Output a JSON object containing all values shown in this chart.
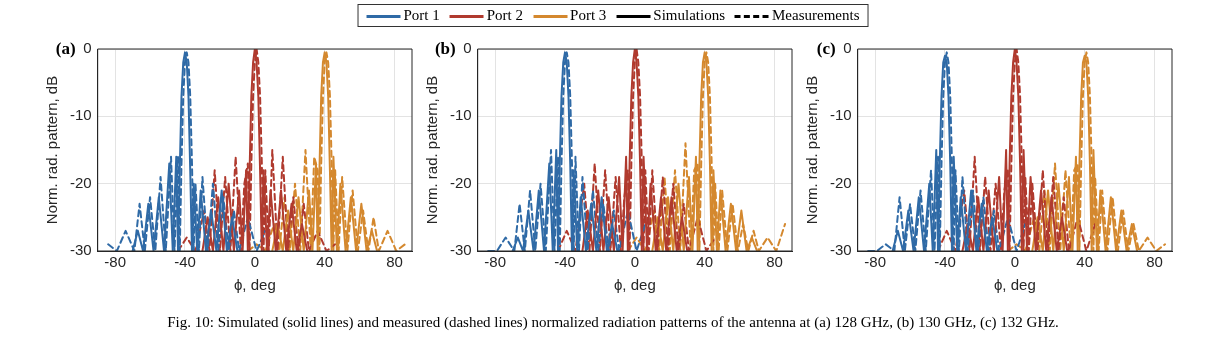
{
  "chart_data": [
    {
      "type": "line",
      "title": "(a)",
      "xlabel": "ϕ, deg",
      "ylabel": "Norm. rad. pattern, dB",
      "xlim": [
        -90,
        90
      ],
      "xticks": [
        -80,
        -40,
        0,
        40,
        80
      ],
      "ylim": [
        -30,
        0
      ],
      "yticks": [
        -30,
        -20,
        -10,
        0
      ],
      "grid": true,
      "annotations": [
        "Fig. 10: Simulated (solid lines) and measured (dashed lines) normalized radiation patterns of the antenna at (a) 128 GHz, (b) 130 GHz, (c) 132 GHz."
      ],
      "series": [
        {
          "color": "#2f6aa6",
          "line_style": "solid",
          "x": [
            -70,
            -67,
            -64,
            -61,
            -58,
            -55,
            -52,
            -49,
            -47,
            -45,
            -44,
            -43,
            -42,
            -41,
            -40,
            -39,
            -38,
            -37,
            -36,
            -35,
            -33,
            -31,
            -28,
            -25,
            -22,
            -19,
            -16,
            -13,
            -10
          ],
          "values": [
            -30,
            -27,
            -30,
            -23,
            -30,
            -22,
            -30,
            -17,
            -30,
            -16,
            -30,
            -18,
            -7,
            -2,
            -0.5,
            -2,
            -7,
            -18,
            -30,
            -20,
            -30,
            -21,
            -30,
            -24,
            -30,
            -21,
            -30,
            -25,
            -30
          ]
        },
        {
          "color": "#b03a2e",
          "line_style": "solid",
          "x": [
            -30,
            -27,
            -24,
            -21,
            -18,
            -15,
            -12,
            -9,
            -7,
            -5,
            -4,
            -3,
            -2,
            -1,
            0,
            1,
            2,
            3,
            4,
            5,
            7,
            9,
            12,
            15,
            18,
            21,
            24,
            27,
            30
          ],
          "values": [
            -30,
            -25,
            -30,
            -22,
            -30,
            -20,
            -30,
            -21,
            -30,
            -18,
            -30,
            -18,
            -7,
            -2,
            0,
            -2,
            -7,
            -18,
            -30,
            -18,
            -30,
            -21,
            -30,
            -21,
            -30,
            -23,
            -30,
            -26,
            -30
          ]
        },
        {
          "color": "#d4882e",
          "line_style": "solid",
          "x": [
            10,
            13,
            16,
            19,
            22,
            25,
            28,
            31,
            33,
            35,
            36,
            37,
            38,
            39,
            40,
            41,
            42,
            43,
            44,
            45,
            47,
            49,
            52,
            55,
            58,
            61,
            64,
            67,
            70
          ],
          "values": [
            -30,
            -26,
            -30,
            -24,
            -30,
            -22,
            -30,
            -21,
            -30,
            -17,
            -30,
            -18,
            -7,
            -2,
            -0.5,
            -2,
            -7,
            -18,
            -30,
            -16,
            -30,
            -20,
            -30,
            -22,
            -30,
            -23,
            -30,
            -27,
            -30
          ]
        },
        {
          "color": "#2f6aa6",
          "line_style": "dashed",
          "x": [
            -84,
            -79,
            -74,
            -69,
            -66,
            -63,
            -60,
            -57,
            -54,
            -51,
            -48,
            -46,
            -44,
            -43,
            -42,
            -41,
            -40,
            -39,
            -38,
            -37,
            -36,
            -35,
            -34,
            -32,
            -30,
            -27,
            -24,
            -21,
            -18,
            -15,
            -12,
            -9,
            -4,
            1,
            6
          ],
          "values": [
            -29,
            -30,
            -27,
            -30,
            -23,
            -30,
            -22,
            -30,
            -19,
            -30,
            -16,
            -30,
            -16,
            -30,
            -17,
            -7,
            -2,
            -0.5,
            -2,
            -7,
            -17,
            -30,
            -20,
            -30,
            -19,
            -30,
            -20,
            -30,
            -22,
            -30,
            -24,
            -30,
            -25,
            -30,
            -27
          ]
        },
        {
          "color": "#b03a2e",
          "line_style": "dashed",
          "x": [
            -44,
            -39,
            -34,
            -29,
            -26,
            -23,
            -20,
            -17,
            -14,
            -11,
            -8,
            -6,
            -4,
            -3,
            -2,
            -1,
            0,
            1,
            2,
            3,
            4,
            5,
            6,
            8,
            10,
            13,
            16,
            19,
            22,
            25,
            28,
            31,
            36,
            41,
            46
          ],
          "values": [
            -30,
            -28,
            -30,
            -24,
            -30,
            -18,
            -30,
            -19,
            -30,
            -16,
            -30,
            -20,
            -17,
            -30,
            -17,
            -7,
            -2,
            0,
            -2,
            -7,
            -17,
            -30,
            -18,
            -30,
            -15,
            -30,
            -16,
            -30,
            -22,
            -30,
            -23,
            -30,
            -27,
            -30,
            -29
          ]
        },
        {
          "color": "#d4882e",
          "line_style": "dashed",
          "x": [
            -4,
            1,
            6,
            11,
            14,
            17,
            20,
            23,
            26,
            29,
            32,
            34,
            36,
            37,
            38,
            39,
            40,
            41,
            42,
            43,
            44,
            45,
            46,
            48,
            50,
            53,
            56,
            59,
            62,
            65,
            68,
            71,
            76,
            81,
            86
          ],
          "values": [
            -30,
            -29,
            -30,
            -26,
            -30,
            -22,
            -30,
            -20,
            -30,
            -15,
            -30,
            -16,
            -18,
            -30,
            -17,
            -7,
            -2,
            -0.5,
            -2,
            -7,
            -17,
            -30,
            -18,
            -30,
            -19,
            -30,
            -21,
            -30,
            -24,
            -30,
            -25,
            -30,
            -27,
            -30,
            -29
          ]
        }
      ]
    },
    {
      "type": "line",
      "title": "(b)",
      "xlabel": "ϕ, deg",
      "ylabel": "Norm. rad. pattern, dB",
      "xlim": [
        -90,
        90
      ],
      "xticks": [
        -80,
        -40,
        0,
        40,
        80
      ],
      "ylim": [
        -30,
        0
      ],
      "yticks": [
        -30,
        -20,
        -10,
        0
      ],
      "grid": true,
      "legend": "top",
      "series": [
        {
          "name": "Port 1",
          "color": "#2f6aa6",
          "line_style": "solid",
          "x": [
            -70,
            -67,
            -64,
            -61,
            -58,
            -55,
            -52,
            -49,
            -47,
            -45,
            -44,
            -43,
            -42,
            -41,
            -40,
            -39,
            -38,
            -37,
            -36,
            -35,
            -33,
            -31,
            -28,
            -25,
            -22,
            -19,
            -16,
            -13,
            -10
          ],
          "values": [
            -30,
            -28,
            -30,
            -24,
            -30,
            -21,
            -30,
            -17,
            -30,
            -15,
            -30,
            -17,
            -7,
            -2,
            -0.5,
            -2,
            -7,
            -17,
            -30,
            -18,
            -30,
            -22,
            -30,
            -23,
            -30,
            -22,
            -30,
            -26,
            -30
          ]
        },
        {
          "name": "Port 2",
          "color": "#b03a2e",
          "line_style": "solid",
          "x": [
            -30,
            -27,
            -24,
            -21,
            -18,
            -15,
            -12,
            -9,
            -7,
            -5,
            -4,
            -3,
            -2,
            -1,
            0,
            1,
            2,
            3,
            4,
            5,
            7,
            9,
            12,
            15,
            18,
            21,
            24,
            27,
            30
          ],
          "values": [
            -30,
            -24,
            -30,
            -21,
            -30,
            -22,
            -30,
            -19,
            -30,
            -16,
            -30,
            -17,
            -7,
            -2,
            0,
            -2,
            -7,
            -17,
            -30,
            -16,
            -30,
            -20,
            -30,
            -22,
            -30,
            -22,
            -30,
            -25,
            -30
          ]
        },
        {
          "name": "Port 3",
          "color": "#d4882e",
          "line_style": "solid",
          "x": [
            10,
            13,
            16,
            19,
            22,
            25,
            28,
            31,
            33,
            35,
            36,
            37,
            38,
            39,
            40,
            41,
            42,
            43,
            44,
            45,
            47,
            49,
            52,
            55,
            58,
            61,
            64,
            67,
            70
          ],
          "values": [
            -30,
            -25,
            -30,
            -22,
            -30,
            -20,
            -30,
            -19,
            -30,
            -16,
            -30,
            -17,
            -7,
            -2,
            -0.5,
            -2,
            -7,
            -17,
            -30,
            -18,
            -30,
            -21,
            -30,
            -23,
            -30,
            -24,
            -30,
            -28,
            -30
          ]
        },
        {
          "color": "#2f6aa6",
          "line_style": "dashed",
          "x": [
            -84,
            -79,
            -74,
            -69,
            -66,
            -63,
            -60,
            -57,
            -54,
            -51,
            -48,
            -46,
            -44,
            -43,
            -42,
            -41,
            -40,
            -39,
            -38,
            -37,
            -36,
            -35,
            -34,
            -32,
            -30,
            -27,
            -24,
            -21,
            -18,
            -15,
            -12,
            -9,
            -4,
            1,
            6
          ],
          "values": [
            -30,
            -30,
            -28,
            -30,
            -23,
            -30,
            -21,
            -30,
            -20,
            -30,
            -15,
            -30,
            -16,
            -30,
            -17,
            -7,
            -2,
            -0.5,
            -2,
            -7,
            -17,
            -30,
            -16,
            -30,
            -19,
            -30,
            -21,
            -30,
            -23,
            -30,
            -24,
            -30,
            -24,
            -30,
            -26
          ]
        },
        {
          "color": "#b03a2e",
          "line_style": "dashed",
          "x": [
            -44,
            -39,
            -34,
            -29,
            -26,
            -23,
            -20,
            -17,
            -14,
            -11,
            -8,
            -6,
            -4,
            -3,
            -2,
            -1,
            0,
            1,
            2,
            3,
            4,
            5,
            6,
            8,
            10,
            13,
            16,
            19,
            22,
            25,
            28,
            31,
            36,
            41,
            46
          ],
          "values": [
            -30,
            -27,
            -30,
            -20,
            -30,
            -17,
            -30,
            -18,
            -30,
            -19,
            -30,
            -22,
            -18,
            -30,
            -17,
            -7,
            -2,
            0,
            -2,
            -7,
            -17,
            -30,
            -18,
            -30,
            -18,
            -30,
            -19,
            -30,
            -20,
            -30,
            -23,
            -30,
            -25,
            -30,
            -28
          ]
        },
        {
          "color": "#d4882e",
          "line_style": "dashed",
          "x": [
            -4,
            1,
            6,
            11,
            14,
            17,
            20,
            23,
            26,
            29,
            32,
            34,
            36,
            37,
            38,
            39,
            40,
            41,
            42,
            43,
            44,
            45,
            46,
            48,
            50,
            53,
            56,
            59,
            62,
            65,
            68,
            71,
            76,
            81,
            86
          ],
          "values": [
            -30,
            -28,
            -30,
            -24,
            -30,
            -19,
            -30,
            -18,
            -30,
            -14,
            -30,
            -18,
            -17,
            -30,
            -17,
            -7,
            -2,
            -0.5,
            -2,
            -7,
            -17,
            -30,
            -20,
            -30,
            -21,
            -30,
            -23,
            -30,
            -26,
            -30,
            -27,
            -30,
            -28,
            -30,
            -26
          ]
        },
        {
          "name": "Simulations",
          "color": "#000000",
          "line_style": "solid"
        },
        {
          "name": "Measurements",
          "color": "#000000",
          "line_style": "dashed"
        }
      ]
    },
    {
      "type": "line",
      "title": "(c)",
      "xlabel": "ϕ, deg",
      "ylabel": "Norm. rad. pattern, dB",
      "xlim": [
        -90,
        90
      ],
      "xticks": [
        -80,
        -40,
        0,
        40,
        80
      ],
      "ylim": [
        -30,
        0
      ],
      "yticks": [
        -30,
        -20,
        -10,
        0
      ],
      "grid": true,
      "series": [
        {
          "color": "#2f6aa6",
          "line_style": "solid",
          "x": [
            -70,
            -67,
            -64,
            -61,
            -58,
            -55,
            -52,
            -49,
            -47,
            -45,
            -44,
            -43,
            -42,
            -41,
            -40,
            -39,
            -38,
            -37,
            -36,
            -35,
            -33,
            -31,
            -28,
            -25,
            -22,
            -19,
            -16,
            -13,
            -10
          ],
          "values": [
            -30,
            -27,
            -30,
            -24,
            -30,
            -22,
            -30,
            -20,
            -30,
            -15,
            -30,
            -17,
            -7,
            -2,
            -1,
            -2,
            -7,
            -17,
            -30,
            -16,
            -30,
            -22,
            -30,
            -21,
            -30,
            -23,
            -30,
            -25,
            -30
          ]
        },
        {
          "color": "#b03a2e",
          "line_style": "solid",
          "x": [
            -30,
            -27,
            -24,
            -21,
            -18,
            -15,
            -12,
            -9,
            -7,
            -5,
            -4,
            -3,
            -2,
            -1,
            0,
            1,
            2,
            3,
            4,
            5,
            7,
            9,
            12,
            15,
            18,
            21,
            24,
            27,
            30
          ],
          "values": [
            -30,
            -26,
            -30,
            -22,
            -30,
            -21,
            -30,
            -19,
            -30,
            -15,
            -30,
            -17,
            -7,
            -2,
            0,
            -2,
            -7,
            -17,
            -30,
            -15,
            -30,
            -19,
            -30,
            -21,
            -30,
            -22,
            -30,
            -25,
            -30
          ]
        },
        {
          "color": "#d4882e",
          "line_style": "solid",
          "x": [
            10,
            13,
            16,
            19,
            22,
            25,
            28,
            31,
            33,
            35,
            36,
            37,
            38,
            39,
            40,
            41,
            42,
            43,
            44,
            45,
            47,
            49,
            52,
            55,
            58,
            61,
            64,
            67,
            70
          ],
          "values": [
            -30,
            -25,
            -30,
            -21,
            -30,
            -20,
            -30,
            -19,
            -30,
            -16,
            -30,
            -17,
            -7,
            -2,
            -1,
            -2,
            -7,
            -17,
            -30,
            -15,
            -30,
            -21,
            -30,
            -22,
            -30,
            -24,
            -30,
            -26,
            -30
          ]
        },
        {
          "color": "#2f6aa6",
          "line_style": "dashed",
          "x": [
            -84,
            -79,
            -74,
            -69,
            -66,
            -63,
            -60,
            -57,
            -54,
            -51,
            -48,
            -46,
            -44,
            -43,
            -42,
            -41,
            -40,
            -39,
            -38,
            -37,
            -36,
            -35,
            -34,
            -32,
            -30,
            -27,
            -24,
            -21,
            -18,
            -15,
            -12,
            -9,
            -4,
            1,
            6
          ],
          "values": [
            -30,
            -30,
            -29,
            -30,
            -22,
            -30,
            -23,
            -30,
            -21,
            -30,
            -18,
            -30,
            -16,
            -30,
            -17,
            -7,
            -2,
            -0.5,
            -2,
            -7,
            -17,
            -30,
            -18,
            -30,
            -19,
            -30,
            -21,
            -30,
            -22,
            -30,
            -24,
            -30,
            -25,
            -30,
            -26
          ]
        },
        {
          "color": "#b03a2e",
          "line_style": "dashed",
          "x": [
            -44,
            -39,
            -34,
            -29,
            -26,
            -23,
            -20,
            -17,
            -14,
            -11,
            -8,
            -6,
            -4,
            -3,
            -2,
            -1,
            0,
            1,
            2,
            3,
            4,
            5,
            6,
            8,
            10,
            13,
            16,
            19,
            22,
            25,
            28,
            31,
            36,
            41,
            46
          ],
          "values": [
            -30,
            -27,
            -30,
            -21,
            -30,
            -16,
            -30,
            -19,
            -30,
            -20,
            -30,
            -21,
            -18,
            -30,
            -17,
            -7,
            -2,
            0,
            -2,
            -7,
            -17,
            -30,
            -19,
            -30,
            -20,
            -30,
            -18,
            -30,
            -19,
            -30,
            -22,
            -30,
            -25,
            -30,
            -26
          ]
        },
        {
          "color": "#d4882e",
          "line_style": "dashed",
          "x": [
            -4,
            1,
            6,
            11,
            14,
            17,
            20,
            23,
            26,
            29,
            32,
            34,
            36,
            37,
            38,
            39,
            40,
            41,
            42,
            43,
            44,
            45,
            46,
            48,
            50,
            53,
            56,
            59,
            62,
            65,
            68,
            71,
            76,
            81,
            86
          ],
          "values": [
            -30,
            -29,
            -30,
            -25,
            -30,
            -21,
            -30,
            -17,
            -30,
            -18,
            -30,
            -18,
            -17,
            -30,
            -17,
            -7,
            -2,
            -0.5,
            -2,
            -7,
            -17,
            -30,
            -19,
            -30,
            -21,
            -30,
            -22,
            -30,
            -24,
            -30,
            -26,
            -30,
            -28,
            -30,
            -29
          ]
        }
      ]
    }
  ]
}
